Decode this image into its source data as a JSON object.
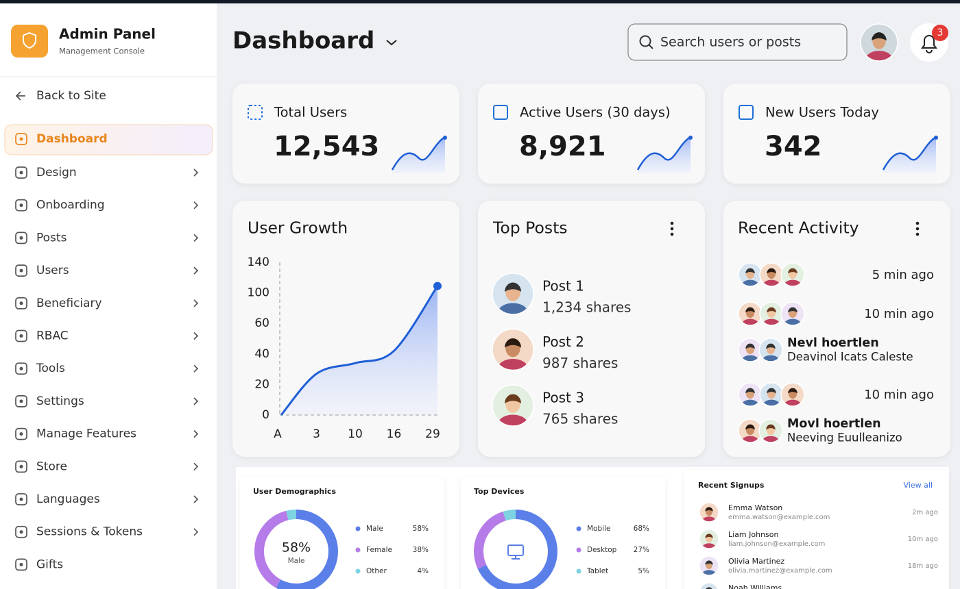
{
  "sidebar": {
    "title": "Admin Panel",
    "subtitle": "Management Console",
    "back": "Back to Site",
    "nav": [
      "Dashboard",
      "Design",
      "Onboarding",
      "Posts",
      "Users",
      "Beneficiary",
      "RBAC",
      "Tools",
      "Settings",
      "Manage Features",
      "Store",
      "Languages",
      "Sessions & Tokens",
      "Gifts"
    ]
  },
  "header": {
    "title": "Dashboard",
    "search_placeholder": "Search users or posts",
    "notifications": 3
  },
  "stats": [
    {
      "label": "Total Users",
      "value": "12,543"
    },
    {
      "label": "Active Users (30 days)",
      "value": "8,921"
    },
    {
      "label": "New Users Today",
      "value": "342"
    }
  ],
  "user_growth": {
    "title": "User Growth",
    "categories": [
      "A",
      "3",
      "10",
      "16",
      "29"
    ],
    "values": [
      0,
      27,
      34,
      42,
      109
    ],
    "yticks": [
      0,
      20,
      40,
      60,
      100,
      140
    ]
  },
  "top_posts": {
    "title": "Top Posts",
    "items": [
      {
        "name": "Post 1",
        "shares": "1,234 shares"
      },
      {
        "name": "Post 2",
        "shares": "987 shares"
      },
      {
        "name": "Post 3",
        "shares": "765 shares"
      }
    ]
  },
  "recent_activity": {
    "title": "Recent Activity",
    "items": [
      {
        "time": "5 min ago"
      },
      {
        "time": "10 min ago"
      },
      {
        "name": "Nevl hoertlen",
        "detail": "Deavinol Icats Caleste"
      },
      {
        "time": "10 min ago"
      },
      {
        "name": "Movl hoertlen",
        "detail": "Neeving Euulleanizo"
      }
    ]
  },
  "demographics": {
    "title": "User Demographics",
    "segments": [
      {
        "name": "Male",
        "value": 58,
        "label": "58%",
        "color": "#5b7fe8"
      },
      {
        "name": "Female",
        "value": 38,
        "label": "38%",
        "color": "#b57be8"
      },
      {
        "name": "Other",
        "value": 4,
        "label": "4%",
        "color": "#7dd3e0"
      }
    ]
  },
  "devices": {
    "title": "Top Devices",
    "segments": [
      {
        "name": "Mobile",
        "value": 68,
        "label": "68%",
        "color": "#5b7fe8"
      },
      {
        "name": "Desktop",
        "value": 27,
        "label": "27%",
        "color": "#b57be8"
      },
      {
        "name": "Tablet",
        "value": 5,
        "label": "5%",
        "color": "#7dd3e0"
      }
    ]
  },
  "signups": {
    "title": "Recent Signups",
    "link": "View all",
    "items": [
      {
        "name": "Emma Watson",
        "email": "emma.watson@example.com",
        "time": "2m ago"
      },
      {
        "name": "Liam Johnson",
        "email": "liam.johnson@example.com",
        "time": "10m ago"
      },
      {
        "name": "Olivia Martinez",
        "email": "olivia.martinez@example.com",
        "time": "18m ago"
      },
      {
        "name": "Noah Williams"
      }
    ]
  }
}
